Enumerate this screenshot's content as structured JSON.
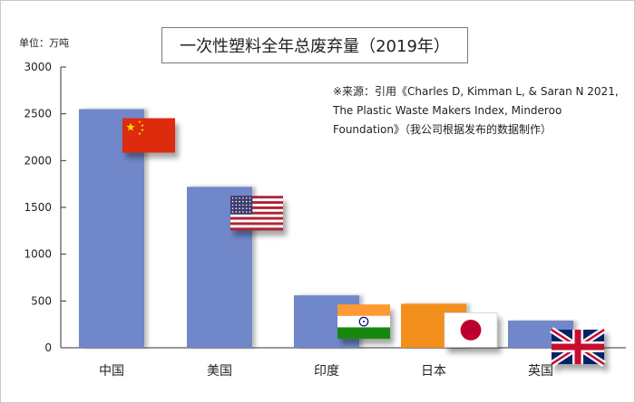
{
  "chart_data": {
    "type": "bar",
    "title": "一次性塑料全年总废弃量（2019年）",
    "unit_label": "单位：万吨",
    "note": "※来源：引用《Charles D, Kimman L, & Saran N 2021, The Plastic Waste Makers Index, Minderoo Foundation》（我公司根据发布的数据制作）",
    "categories": [
      "中国",
      "美国",
      "印度",
      "日本",
      "英国"
    ],
    "values": [
      2550,
      1720,
      560,
      470,
      290
    ],
    "bar_colors": [
      "#6f87c9",
      "#6f87c9",
      "#6f87c9",
      "#f28e1c",
      "#6f87c9"
    ],
    "flags": [
      "china-flag",
      "usa-flag",
      "india-flag",
      "japan-flag",
      "uk-flag"
    ],
    "ylim": [
      0,
      3000
    ],
    "yticks": [
      "0",
      "500",
      "1000",
      "1500",
      "2000",
      "2500",
      "3000"
    ],
    "grid": false,
    "legend": "none",
    "xlabel": "",
    "ylabel": ""
  }
}
